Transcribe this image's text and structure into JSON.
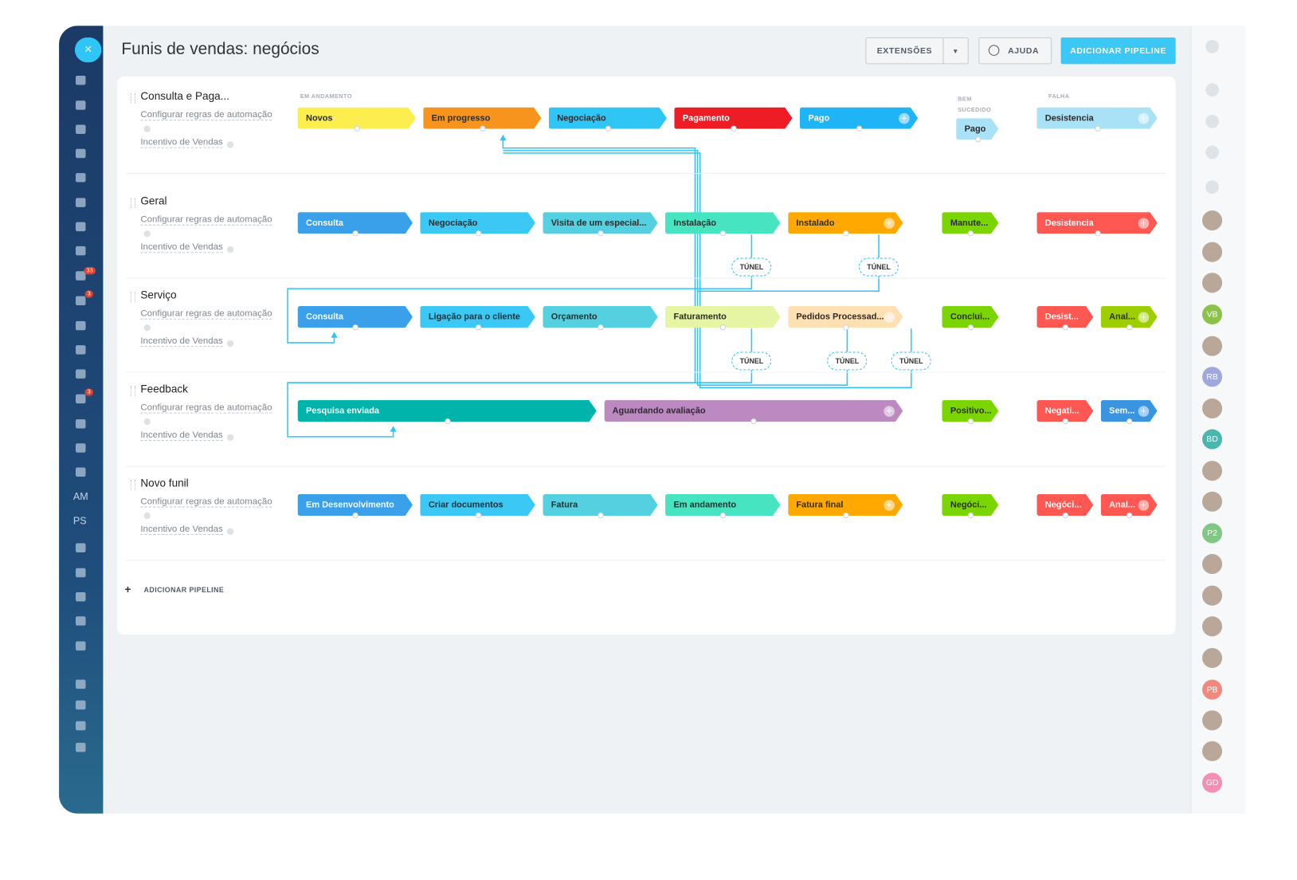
{
  "header": {
    "title": "Funis de vendas: negócios",
    "extensions": "EXTENSÕES",
    "help": "AJUDA",
    "add_pipeline": "ADICIONAR PIPELINE"
  },
  "columns": {
    "in_progress": "EM ANDAMENTO",
    "success": "BEM SUCEDIDO",
    "failure": "FALHA"
  },
  "pipelines": [
    {
      "name": "Consulta e Paga...",
      "automation": "Configurar regras de automação",
      "incentive": "Incentivo de Vendas",
      "stages": [
        {
          "label": "Novos",
          "color": "#fbee4e"
        },
        {
          "label": "Em progresso",
          "color": "#f7941d"
        },
        {
          "label": "Negociação",
          "color": "#2fc6f6"
        },
        {
          "label": "Pagamento",
          "color": "#ee1c24"
        },
        {
          "label": "Pago",
          "color": "#1eb4f5"
        }
      ],
      "success": [
        {
          "label": "Pago",
          "color": "#a9e2f7"
        }
      ],
      "failure": [
        {
          "label": "Desistencia",
          "color": "#a9e2f7"
        }
      ]
    },
    {
      "name": "Geral",
      "automation": "Configurar regras de automação",
      "incentive": "Incentivo de Vendas",
      "stages": [
        {
          "label": "Consulta",
          "color": "#3aa0ea"
        },
        {
          "label": "Negociação",
          "color": "#3bc8f5"
        },
        {
          "label": "Visita de um especial...",
          "color": "#55d0e0"
        },
        {
          "label": "Instalação",
          "color": "#47e4c2"
        },
        {
          "label": "Instalado",
          "color": "#ffa900"
        }
      ],
      "success": [
        {
          "label": "Manute...",
          "color": "#7bd500"
        }
      ],
      "failure": [
        {
          "label": "Desistencia",
          "color": "#ff5752"
        }
      ]
    },
    {
      "name": "Serviço",
      "automation": "Configurar regras de automação",
      "incentive": "Incentivo de Vendas",
      "stages": [
        {
          "label": "Consulta",
          "color": "#3aa0ea"
        },
        {
          "label": "Ligação para o cliente",
          "color": "#3bc8f5"
        },
        {
          "label": "Orçamento",
          "color": "#55d0e0"
        },
        {
          "label": "Faturamento",
          "color": "#e6f5a3"
        },
        {
          "label": "Pedidos Processad...",
          "color": "#ffe0b3"
        }
      ],
      "success": [
        {
          "label": "Conclui...",
          "color": "#7bd500"
        }
      ],
      "failure": [
        {
          "label": "Desist...",
          "color": "#ff5752"
        },
        {
          "label": "Anal...",
          "color": "#9dcf00"
        }
      ]
    },
    {
      "name": "Feedback",
      "automation": "Configurar regras de automação",
      "incentive": "Incentivo de Vendas",
      "stages": [
        {
          "label": "Pesquisa enviada",
          "color": "#00b4ac"
        },
        {
          "label": "Aguardando avaliação",
          "color": "#bc8ac1"
        }
      ],
      "success": [
        {
          "label": "Positivo...",
          "color": "#7bd500"
        }
      ],
      "failure": [
        {
          "label": "Negati...",
          "color": "#ff5752"
        },
        {
          "label": "Sem...",
          "color": "#3a94e0"
        }
      ]
    },
    {
      "name": "Novo funil",
      "automation": "Configurar regras de automação",
      "incentive": "Incentivo de Vendas",
      "stages": [
        {
          "label": "Em Desenvolvimento",
          "color": "#3aa0ea"
        },
        {
          "label": "Criar documentos",
          "color": "#3bc8f5"
        },
        {
          "label": "Fatura",
          "color": "#55d0e0"
        },
        {
          "label": "Em andamento",
          "color": "#47e4c2"
        },
        {
          "label": "Fatura final",
          "color": "#ffa900"
        }
      ],
      "success": [
        {
          "label": "Negóci...",
          "color": "#7bd500"
        }
      ],
      "failure": [
        {
          "label": "Negóci...",
          "color": "#ff5752"
        },
        {
          "label": "Anal...",
          "color": "#ff5752"
        }
      ]
    }
  ],
  "tunnels": [
    "TÚNEL",
    "TÚNEL",
    "TÚNEL",
    "TÚNEL",
    "TÚNEL"
  ],
  "add_pipeline": "ADICIONAR PIPELINE",
  "left_sidebar": {
    "items": [
      "AM",
      "PS"
    ],
    "badges": [
      "33",
      "3",
      "3"
    ]
  },
  "right_sidebar": {
    "avatars": [
      {
        "initials": "VB",
        "color": "#8bc34a"
      },
      {
        "initials": "RB",
        "color": "#9fa8da"
      },
      {
        "initials": "BD",
        "color": "#4db6ac"
      },
      {
        "initials": "P2",
        "color": "#81c784"
      },
      {
        "initials": "PB",
        "color": "#ef8a80"
      },
      {
        "initials": "GD",
        "color": "#f48fb1"
      }
    ]
  }
}
